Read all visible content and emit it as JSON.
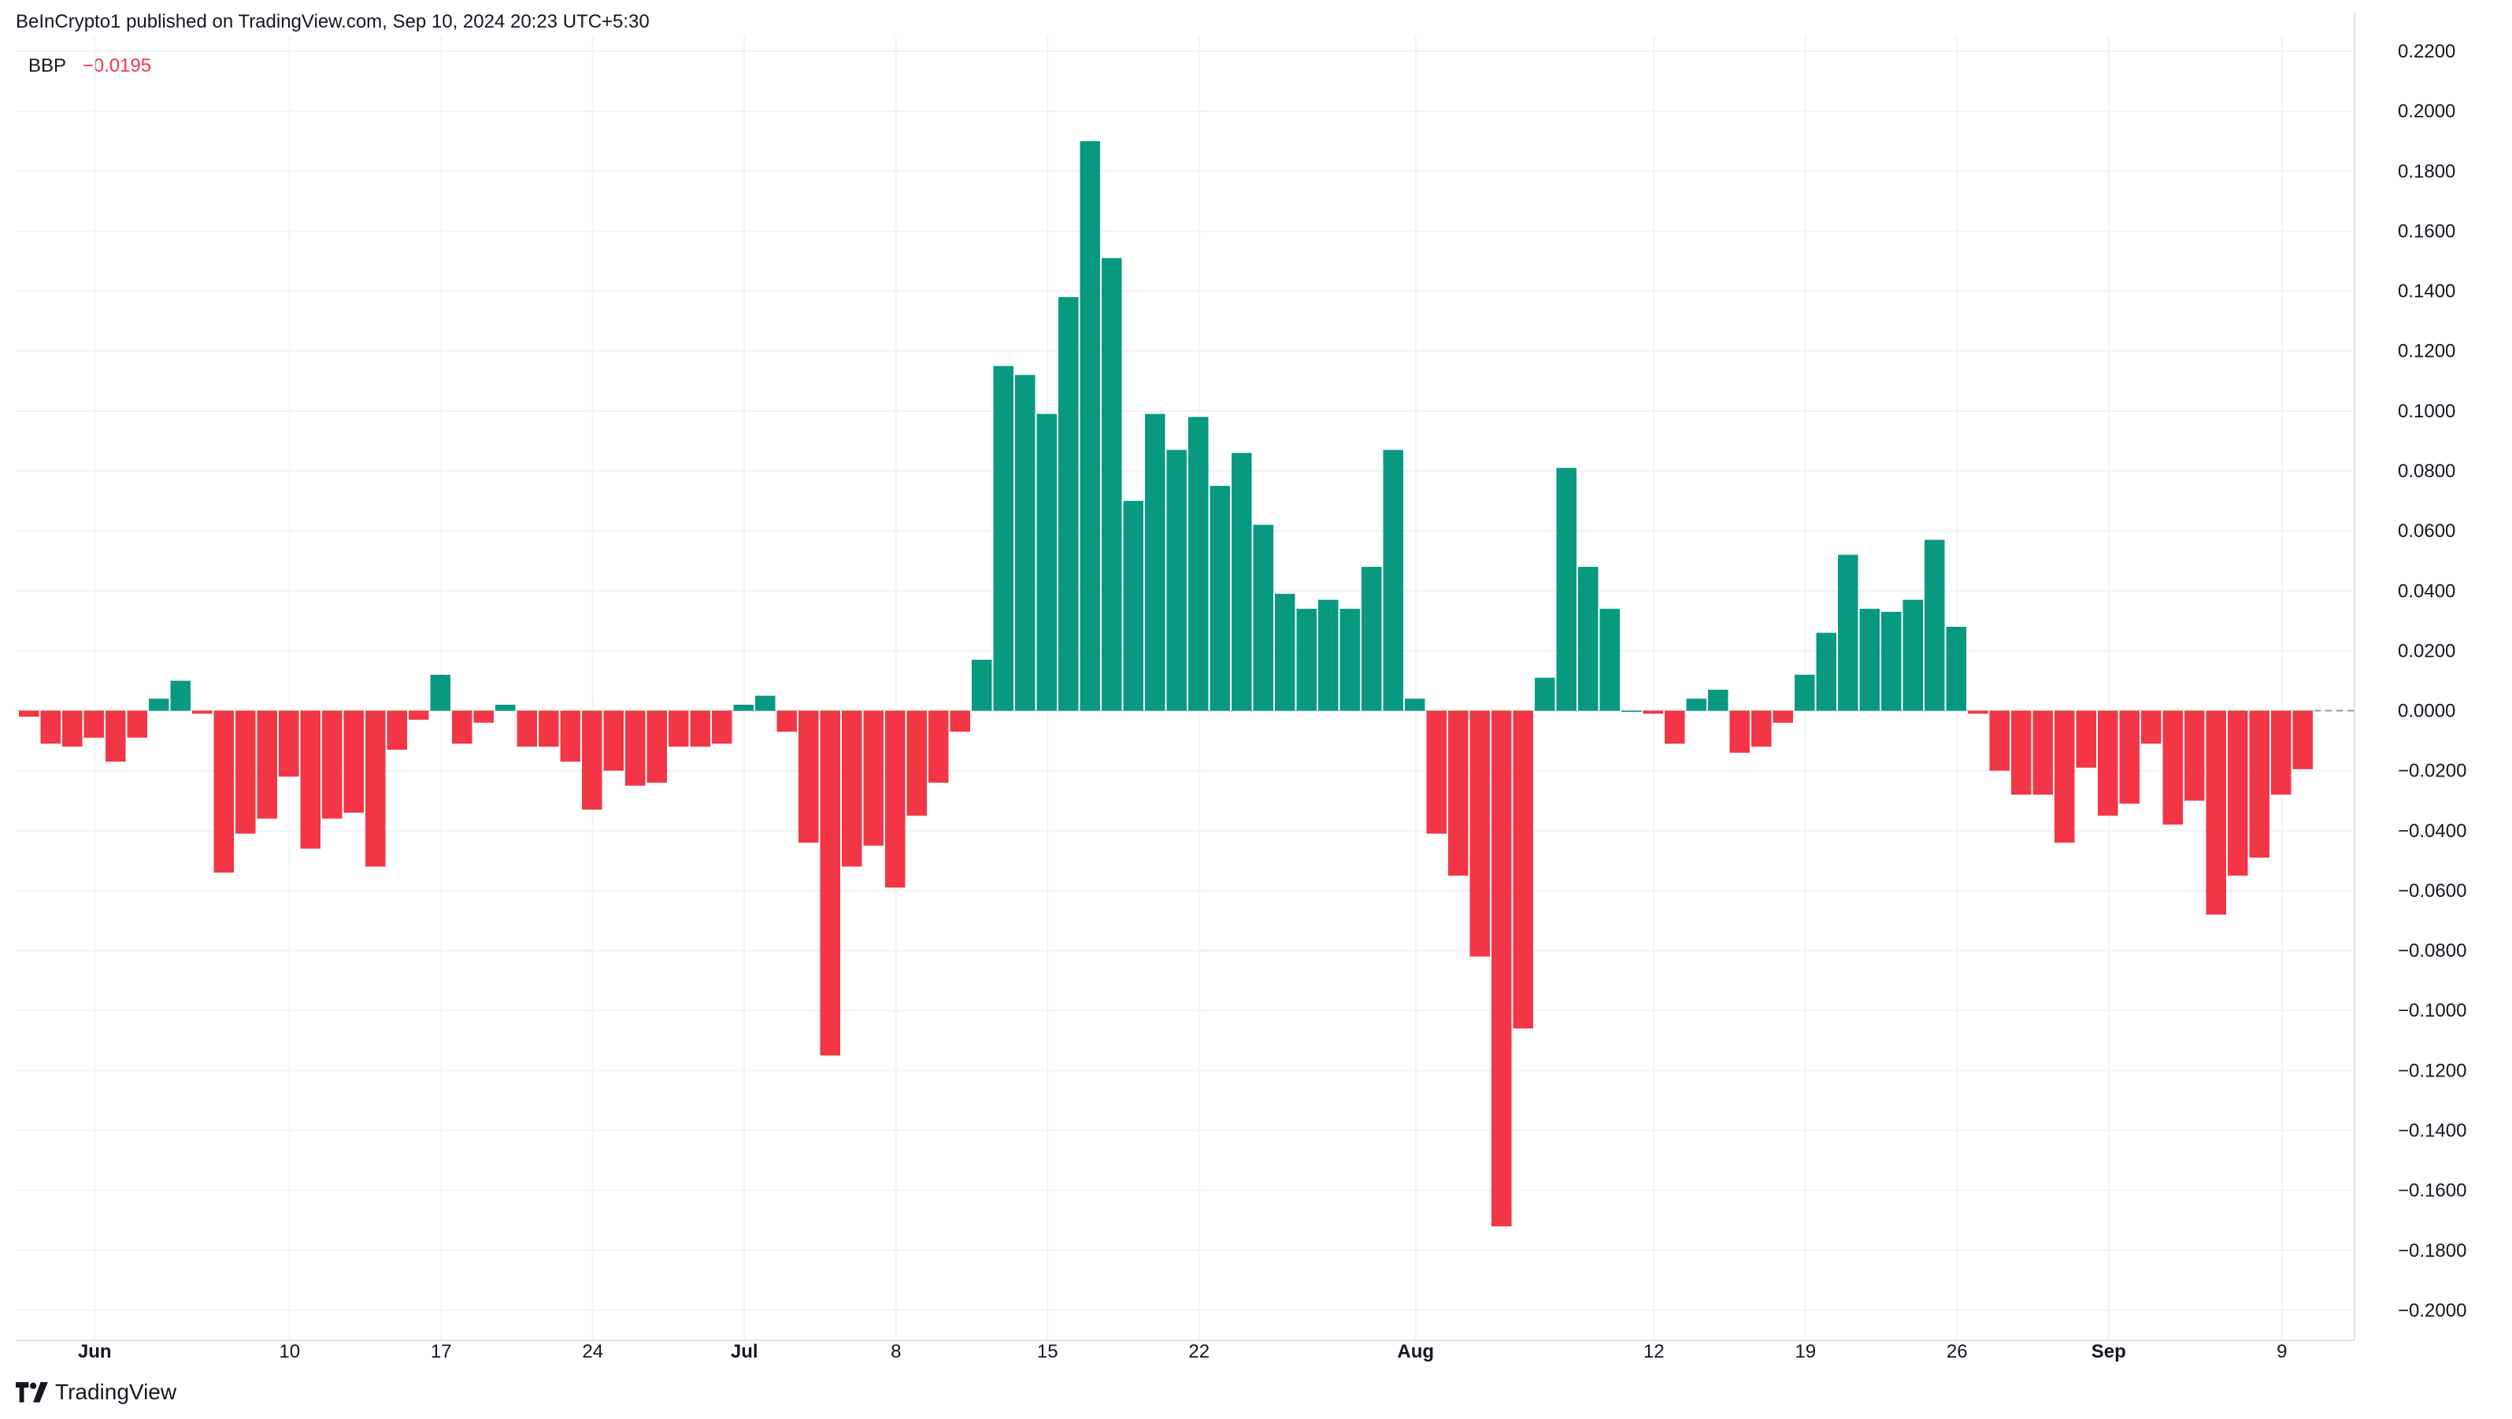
{
  "header": {
    "published": "BeInCrypto1 published on TradingView.com, Sep 10, 2024 20:23 UTC+5:30"
  },
  "legend": {
    "name": "BBP",
    "value": "−0.0195"
  },
  "footer": {
    "brand": "TradingView"
  },
  "colors": {
    "positive": "#089981",
    "negative": "#f23645",
    "grid": "#f0f3fa",
    "text": "#131722"
  },
  "chart_data": {
    "type": "bar",
    "title": "BBP",
    "ylim": [
      -0.21,
      0.225
    ],
    "yticks": [
      0.22,
      0.2,
      0.18,
      0.16,
      0.14,
      0.12,
      0.1,
      0.08,
      0.06,
      0.04,
      0.02,
      0.0,
      -0.02,
      -0.04,
      -0.06,
      -0.08,
      -0.1,
      -0.12,
      -0.14,
      -0.16,
      -0.18,
      -0.2
    ],
    "ytick_labels": [
      "0.2200",
      "0.2000",
      "0.1800",
      "0.1600",
      "0.1400",
      "0.1200",
      "0.1000",
      "0.0800",
      "0.0600",
      "0.0400",
      "0.0200",
      "0.0000",
      "−0.0200",
      "−0.0400",
      "−0.0600",
      "−0.0800",
      "−0.1000",
      "−0.1200",
      "−0.1400",
      "−0.1600",
      "−0.1800",
      "−0.2000"
    ],
    "xticks": [
      {
        "label": "Jun",
        "index": 3.5,
        "bold": true
      },
      {
        "label": "10",
        "index": 12.5,
        "bold": false
      },
      {
        "label": "17",
        "index": 19.5,
        "bold": false
      },
      {
        "label": "24",
        "index": 26.5,
        "bold": false
      },
      {
        "label": "Jul",
        "index": 33.5,
        "bold": true
      },
      {
        "label": "8",
        "index": 40.5,
        "bold": false
      },
      {
        "label": "15",
        "index": 47.5,
        "bold": false
      },
      {
        "label": "22",
        "index": 54.5,
        "bold": false
      },
      {
        "label": "Aug",
        "index": 64.5,
        "bold": true
      },
      {
        "label": "12",
        "index": 75.5,
        "bold": false
      },
      {
        "label": "19",
        "index": 82.5,
        "bold": false
      },
      {
        "label": "26",
        "index": 89.5,
        "bold": false
      },
      {
        "label": "Sep",
        "index": 96.5,
        "bold": true
      },
      {
        "label": "9",
        "index": 104.5,
        "bold": false
      }
    ],
    "values": [
      -0.002,
      -0.011,
      -0.012,
      -0.009,
      -0.017,
      -0.009,
      0.004,
      0.01,
      -0.001,
      -0.054,
      -0.041,
      -0.036,
      -0.022,
      -0.046,
      -0.036,
      -0.034,
      -0.052,
      -0.013,
      -0.003,
      0.012,
      -0.011,
      -0.004,
      0.002,
      -0.012,
      -0.012,
      -0.017,
      -0.033,
      -0.02,
      -0.025,
      -0.024,
      -0.012,
      -0.012,
      -0.011,
      0.002,
      0.005,
      -0.007,
      -0.044,
      -0.115,
      -0.052,
      -0.045,
      -0.059,
      -0.035,
      -0.024,
      -0.007,
      0.017,
      0.115,
      0.112,
      0.099,
      0.138,
      0.19,
      0.151,
      0.07,
      0.099,
      0.087,
      0.098,
      0.075,
      0.086,
      0.062,
      0.039,
      0.034,
      0.037,
      0.034,
      0.048,
      0.087,
      0.004,
      -0.041,
      -0.055,
      -0.082,
      -0.172,
      -0.106,
      0.011,
      0.081,
      0.048,
      0.034,
      0.0,
      -0.001,
      -0.011,
      0.004,
      0.007,
      -0.014,
      -0.012,
      -0.004,
      0.012,
      0.026,
      0.052,
      0.034,
      0.033,
      0.037,
      0.057,
      0.028,
      -0.001,
      -0.02,
      -0.028,
      -0.028,
      -0.044,
      -0.019,
      -0.035,
      -0.031,
      -0.011,
      -0.038,
      -0.03,
      -0.068,
      -0.055,
      -0.049,
      -0.028,
      -0.0195
    ]
  }
}
